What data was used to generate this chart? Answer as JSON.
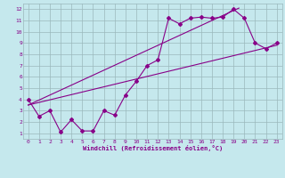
{
  "title": "",
  "xlabel": "Windchill (Refroidissement éolien,°C)",
  "ylabel": "",
  "bg_color": "#c5e8ed",
  "grid_color": "#9ab8bc",
  "line_color": "#880088",
  "xlim": [
    -0.5,
    23.5
  ],
  "ylim": [
    0.5,
    12.5
  ],
  "xticks": [
    0,
    1,
    2,
    3,
    4,
    5,
    6,
    7,
    8,
    9,
    10,
    11,
    12,
    13,
    14,
    15,
    16,
    17,
    18,
    19,
    20,
    21,
    22,
    23
  ],
  "yticks": [
    1,
    2,
    3,
    4,
    5,
    6,
    7,
    8,
    9,
    10,
    11,
    12
  ],
  "line1_x": [
    0,
    1,
    2,
    3,
    4,
    5,
    6,
    7,
    8,
    9,
    10,
    11,
    12,
    13,
    14,
    15,
    16,
    17,
    18,
    19,
    20,
    21,
    22,
    23
  ],
  "line1_y": [
    4.0,
    2.5,
    3.0,
    1.1,
    2.2,
    1.2,
    1.2,
    3.0,
    2.6,
    4.4,
    5.6,
    7.0,
    7.5,
    11.2,
    10.7,
    11.2,
    11.3,
    11.2,
    11.3,
    12.0,
    11.2,
    9.0,
    8.5,
    9.0
  ],
  "line2_x": [
    0,
    23
  ],
  "line2_y": [
    3.5,
    8.8
  ],
  "line3_x": [
    0,
    19.5
  ],
  "line3_y": [
    3.5,
    12.1
  ],
  "tick_fontsize": 4.5,
  "xlabel_fontsize": 5.0,
  "marker_size": 2.0,
  "line_width": 0.8
}
